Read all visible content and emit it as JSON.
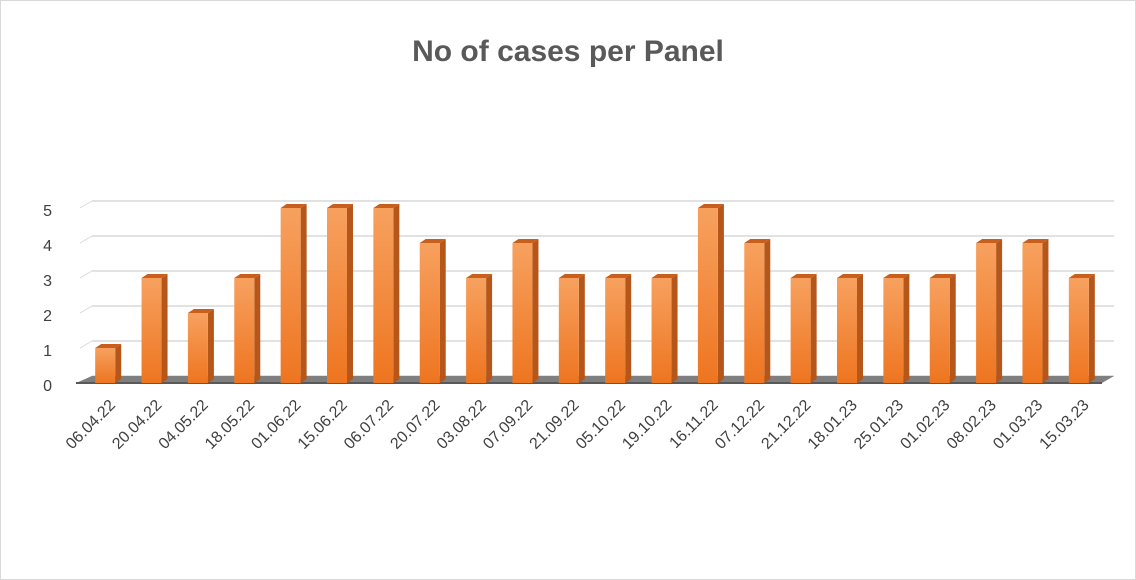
{
  "chart_data": {
    "type": "bar",
    "title": "No of cases per Panel",
    "categories": [
      "06.04.22",
      "20.04.22",
      "04.05.22",
      "18.05.22",
      "01.06.22",
      "15.06.22",
      "06.07.22",
      "20.07.22",
      "03.08.22",
      "07.09.22",
      "21.09.22",
      "05.10.22",
      "19.10.22",
      "16.11.22",
      "07.12.22",
      "21.12.22",
      "18.01.23",
      "25.01.23",
      "01.02.23",
      "08.02.23",
      "01.03.23",
      "15.03.23"
    ],
    "values": [
      1,
      3,
      2,
      3,
      5,
      5,
      5,
      4,
      3,
      4,
      3,
      3,
      3,
      5,
      4,
      3,
      3,
      3,
      3,
      4,
      4,
      3
    ],
    "color": "#ed7d31",
    "ylim": [
      0,
      5
    ],
    "yticks": [
      0,
      1,
      2,
      3,
      4,
      5
    ],
    "grid": true
  }
}
